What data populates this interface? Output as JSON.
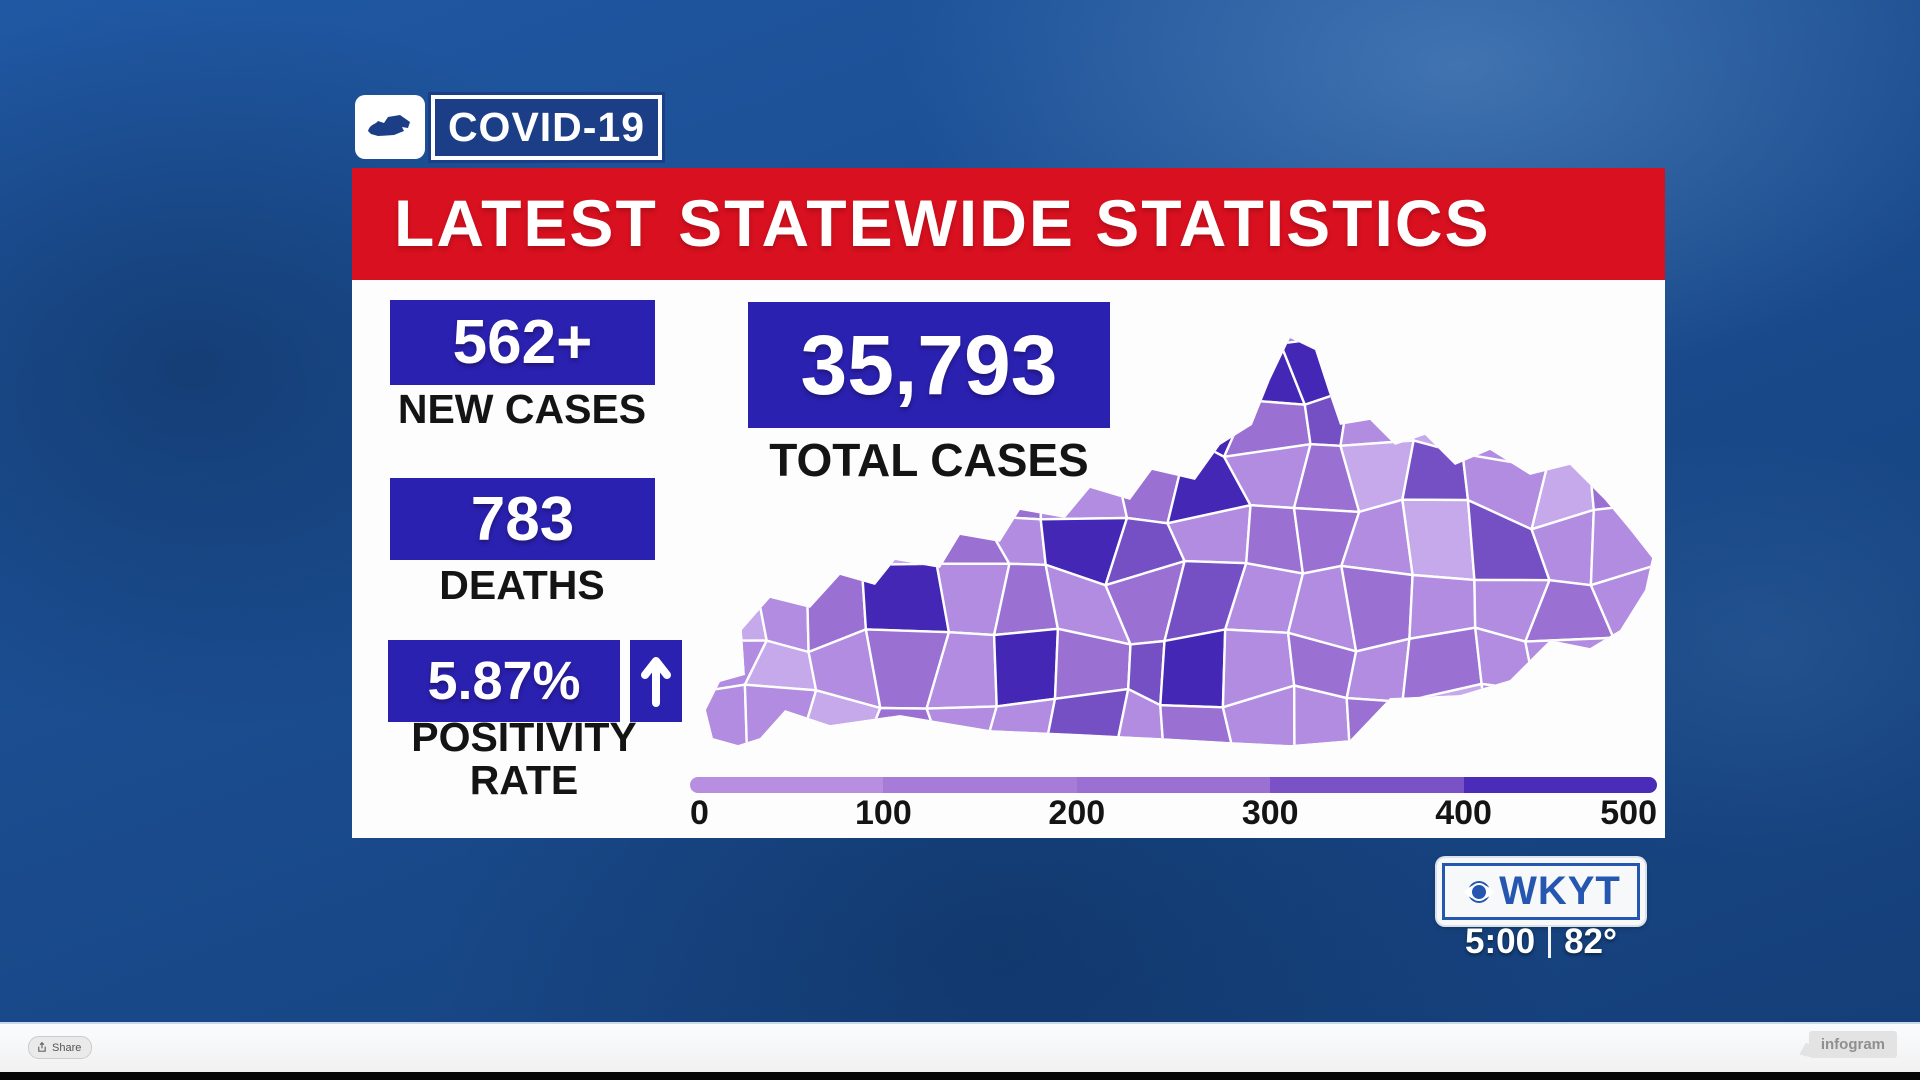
{
  "badge": {
    "title": "COVID-19",
    "icon": "kentucky-state-silhouette"
  },
  "banner": {
    "title": "LATEST STATEWIDE STATISTICS"
  },
  "stats": {
    "new_cases": {
      "value": "562+",
      "label": "NEW CASES"
    },
    "total_cases": {
      "value": "35,793",
      "label": "TOTAL CASES"
    },
    "deaths": {
      "value": "783",
      "label": "DEATHS"
    },
    "positivity": {
      "value": "5.87%",
      "label_line1": "POSITIVITY",
      "label_line2": "RATE",
      "trend": "up"
    }
  },
  "map": {
    "type": "choropleth",
    "region": "Kentucky counties",
    "legend": {
      "min": 0,
      "max": 500,
      "ticks": [
        "0",
        "100",
        "200",
        "300",
        "400",
        "500"
      ],
      "colors": [
        "#b78ee0",
        "#a67cd8",
        "#9a70d2",
        "#7b52c6",
        "#4a2cb8"
      ]
    },
    "palette": {
      "0": "#c6a9ea",
      "1": "#b18ce1",
      "2": "#9a70d3",
      "3": "#7550c5",
      "4": "#4527b5"
    },
    "pattern": [
      "1111111104410110",
      "0110121342310101",
      "1021021241203102",
      "1310214312210311",
      "0124121231121121",
      "1012142341212110",
      "1102113121120111"
    ]
  },
  "station": {
    "logo_text": "WKYT",
    "time": "5:00",
    "divider": "|",
    "temp": "82°"
  },
  "footer": {
    "share_label": "Share",
    "brand": "infogram"
  },
  "colors": {
    "background_blue": "#1a4b8d",
    "banner_red": "#d8101f",
    "stat_box_blue": "#2b21b1",
    "badge_navy": "#1c3e86",
    "station_blue": "#2557b0"
  }
}
